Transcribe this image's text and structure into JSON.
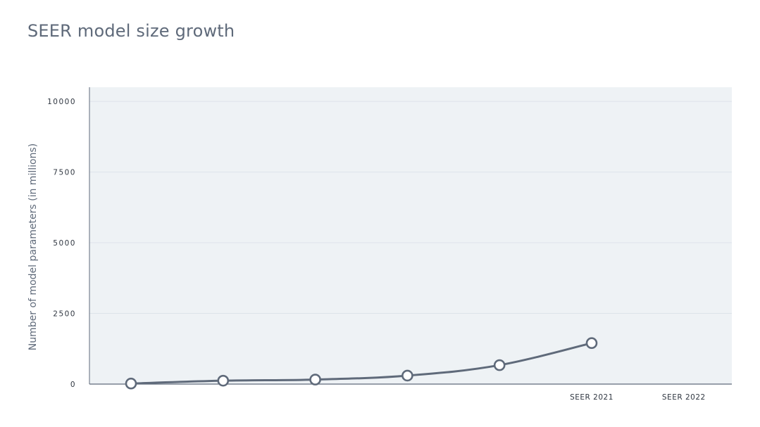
{
  "chart_data": {
    "type": "line",
    "title": "SEER model size growth",
    "xlabel": "",
    "ylabel": "Number of model parameters (in millions)",
    "categories": [
      "",
      "",
      "",
      "",
      "",
      "SEER 2021",
      "SEER 2022"
    ],
    "series": [
      {
        "values": [
          20,
          120,
          160,
          300,
          670,
          1450,
          null
        ]
      }
    ],
    "ylim": [
      0,
      10500
    ],
    "yticks": [
      0,
      2500,
      5000,
      7500,
      10000
    ],
    "ytick_labels": [
      "0",
      "2500",
      "5000",
      "7500",
      "10000"
    ],
    "grid": true,
    "legend": "none",
    "colors": {
      "line": "#5f6a7a",
      "plot_background": "#eef2f5",
      "grid": "#dde3ea",
      "axis": "#5f6a7a",
      "marker_fill": "#ffffff"
    }
  }
}
